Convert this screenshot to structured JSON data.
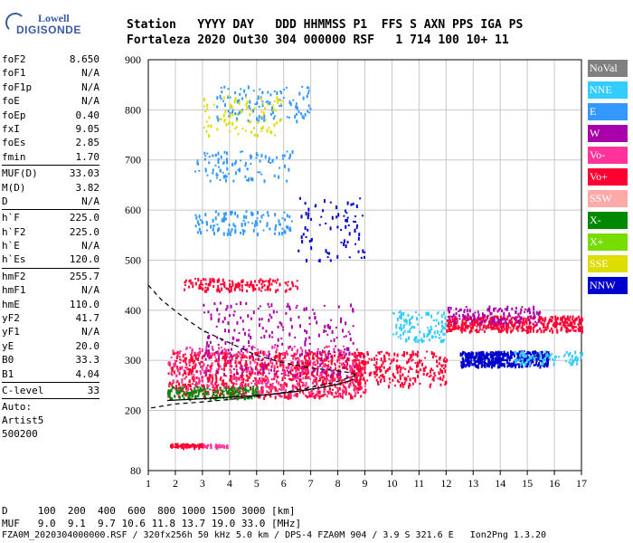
{
  "logo": {
    "line1": "Lowell",
    "line2": "DIGISONDE"
  },
  "header": {
    "line1": "Station   YYYY DAY   DDD HHMMSS P1  FFS S AXN PPS IGA PS",
    "line2": "Fortaleza 2020 Out30 304 000000 RSF   1 714 100 10+ 11"
  },
  "params": [
    {
      "name": "foF2",
      "value": "8.650"
    },
    {
      "name": "foF1",
      "value": "N/A"
    },
    {
      "name": "foF1p",
      "value": "N/A"
    },
    {
      "name": "foE",
      "value": "N/A"
    },
    {
      "name": "foEp",
      "value": "0.40"
    },
    {
      "name": "fxI",
      "value": "9.05"
    },
    {
      "name": "foEs",
      "value": "2.85"
    },
    {
      "name": "fmin",
      "value": "1.70"
    },
    {
      "sep": true
    },
    {
      "name": "MUF(D)",
      "value": "33.03"
    },
    {
      "name": "M(D)",
      "value": "3.82"
    },
    {
      "name": "D",
      "value": "N/A"
    },
    {
      "sep": true
    },
    {
      "name": "h`F",
      "value": "225.0"
    },
    {
      "name": "h`F2",
      "value": "225.0"
    },
    {
      "name": "h`E",
      "value": "N/A"
    },
    {
      "name": "h`Es",
      "value": "120.0"
    },
    {
      "sep": true
    },
    {
      "name": "hmF2",
      "value": "255.7"
    },
    {
      "name": "hmF1",
      "value": "N/A"
    },
    {
      "name": "hmE",
      "value": "110.0"
    },
    {
      "name": "yF2",
      "value": "41.7"
    },
    {
      "name": "yF1",
      "value": "N/A"
    },
    {
      "name": "yE",
      "value": "20.0"
    },
    {
      "name": "B0",
      "value": "33.3"
    },
    {
      "name": "B1",
      "value": "4.04"
    },
    {
      "sep": true
    },
    {
      "name": "C-level",
      "value": "33"
    },
    {
      "sep": true
    }
  ],
  "extra": [
    "Auto:",
    "Artist5",
    "500200"
  ],
  "legend": [
    {
      "label": "NoVal",
      "color": "#808080"
    },
    {
      "label": "NNE",
      "color": "#33ccff"
    },
    {
      "label": "E",
      "color": "#3399ff"
    },
    {
      "label": "W",
      "color": "#aa00aa"
    },
    {
      "label": "Vo-",
      "color": "#ff3399"
    },
    {
      "label": "Vo+",
      "color": "#ff0033"
    },
    {
      "label": "SSW",
      "color": "#ffaaaa"
    },
    {
      "label": "X-",
      "color": "#008800"
    },
    {
      "label": "X+",
      "color": "#77dd00"
    },
    {
      "label": "SSE",
      "color": "#dddd00"
    },
    {
      "label": "NNW",
      "color": "#0000cc"
    }
  ],
  "footer": {
    "d_line": "D     100  200  400  600  800 1000 1500 3000 [km]",
    "muf_line": "MUF   9.0  9.1  9.7 10.6 11.8 13.7 19.0 33.0 [MHz]",
    "file_line": "FZA0M_2020304000000.RSF / 320fx256h 50 kHz 5.0 km / DPS-4 FZA0M 904 / 3.9 S 321.6 E   Ion2Png 1.3.20"
  },
  "chart_data": {
    "type": "scatter",
    "title": "",
    "xlabel": "",
    "ylabel": "",
    "x_ticks": [
      1,
      2,
      3,
      4,
      5,
      6,
      7,
      8,
      9,
      10,
      11,
      12,
      13,
      14,
      15,
      16,
      17
    ],
    "y_ticks": [
      80,
      200,
      300,
      400,
      500,
      600,
      700,
      800,
      900
    ],
    "xlim": [
      1,
      17
    ],
    "ylim": [
      80,
      900
    ],
    "grid": true,
    "legend_position": "right",
    "traces": [
      {
        "name": "F2 O-trace lower edge",
        "style": "solid",
        "x": [
          1.7,
          2.5,
          3.5,
          4.5,
          5.5,
          6.5,
          7.3,
          8.0,
          8.6
        ],
        "y": [
          220,
          222,
          225,
          228,
          232,
          238,
          245,
          252,
          262
        ]
      },
      {
        "name": "Profile lower",
        "style": "dashed",
        "x": [
          1.1,
          2.0,
          3.0,
          4.0,
          5.0,
          6.0,
          7.0,
          8.0,
          8.65
        ],
        "y": [
          205,
          213,
          217,
          222,
          228,
          236,
          246,
          258,
          270
        ]
      },
      {
        "name": "Profile upper",
        "style": "dashed",
        "x": [
          1.0,
          1.5,
          2.2,
          3.0,
          4.0,
          5.0,
          6.0,
          7.0,
          7.8,
          8.4,
          8.65
        ],
        "y": [
          450,
          420,
          390,
          360,
          335,
          310,
          295,
          285,
          280,
          276,
          272
        ]
      }
    ],
    "echo_regions": [
      {
        "color": "#ff0033",
        "x": [
          1.7,
          9.0
        ],
        "y": [
          228,
          320
        ],
        "density": 900
      },
      {
        "color": "#ff3399",
        "x": [
          1.7,
          9.0
        ],
        "y": [
          230,
          330
        ],
        "density": 400
      },
      {
        "color": "#008800",
        "x": [
          1.7,
          5.0
        ],
        "y": [
          225,
          250
        ],
        "density": 160
      },
      {
        "color": "#aa00aa",
        "x": [
          3.0,
          8.6
        ],
        "y": [
          270,
          420
        ],
        "density": 260
      },
      {
        "color": "#ff0033",
        "x": [
          8.5,
          12.0
        ],
        "y": [
          250,
          320
        ],
        "density": 260
      },
      {
        "color": "#33ccff",
        "x": [
          10.0,
          12.0
        ],
        "y": [
          340,
          400
        ],
        "density": 120
      },
      {
        "color": "#0000cc",
        "x": [
          12.5,
          15.8
        ],
        "y": [
          290,
          320
        ],
        "density": 450
      },
      {
        "color": "#ff0033",
        "x": [
          12.0,
          17.0
        ],
        "y": [
          360,
          390
        ],
        "density": 450
      },
      {
        "color": "#aa00aa",
        "x": [
          12.0,
          15.5
        ],
        "y": [
          375,
          410
        ],
        "density": 140
      },
      {
        "color": "#33ccff",
        "x": [
          14.5,
          17.0
        ],
        "y": [
          295,
          320
        ],
        "density": 80
      },
      {
        "color": "#ff0033",
        "x": [
          2.3,
          6.5
        ],
        "y": [
          440,
          465
        ],
        "density": 160
      },
      {
        "color": "#3399ff",
        "x": [
          2.7,
          6.3
        ],
        "y": [
          555,
          600
        ],
        "density": 120
      },
      {
        "color": "#3399ff",
        "x": [
          2.7,
          6.3
        ],
        "y": [
          660,
          720
        ],
        "density": 100
      },
      {
        "color": "#3399ff",
        "x": [
          3.5,
          7.0
        ],
        "y": [
          780,
          850
        ],
        "density": 110
      },
      {
        "color": "#dddd00",
        "x": [
          3.0,
          6.0
        ],
        "y": [
          750,
          830
        ],
        "density": 90
      },
      {
        "color": "#0000cc",
        "x": [
          6.5,
          9.0
        ],
        "y": [
          500,
          630
        ],
        "density": 80
      },
      {
        "color": "#ff0033",
        "x": [
          1.8,
          3.0
        ],
        "y": [
          128,
          135
        ],
        "density": 90
      },
      {
        "color": "#ff3399",
        "x": [
          3.0,
          4.0
        ],
        "y": [
          128,
          134
        ],
        "density": 30
      }
    ]
  }
}
